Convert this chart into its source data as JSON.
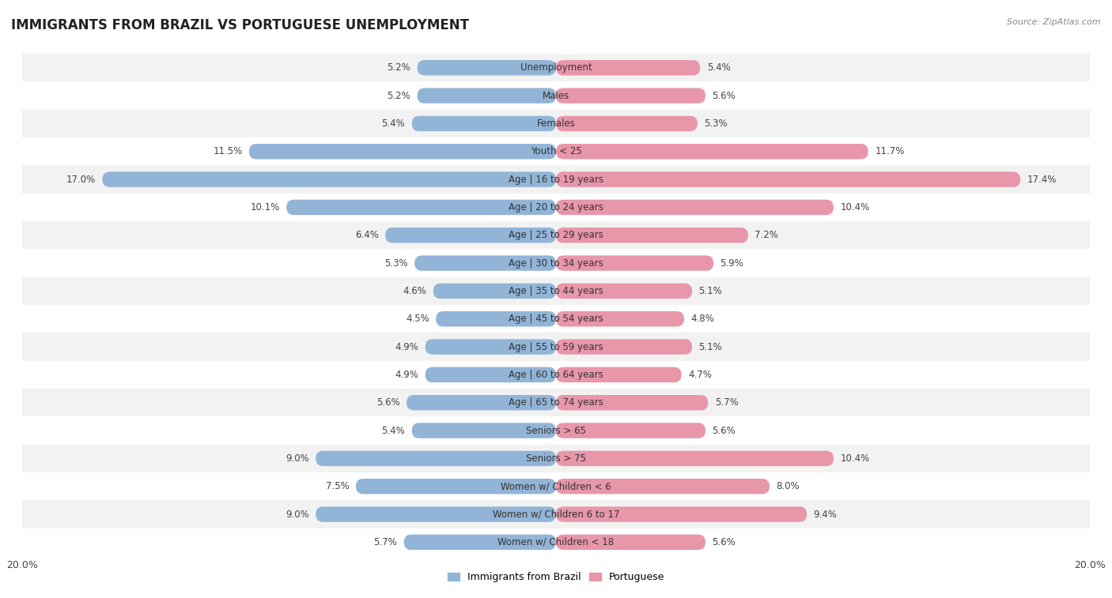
{
  "title": "IMMIGRANTS FROM BRAZIL VS PORTUGUESE UNEMPLOYMENT",
  "source": "Source: ZipAtlas.com",
  "categories": [
    "Unemployment",
    "Males",
    "Females",
    "Youth < 25",
    "Age | 16 to 19 years",
    "Age | 20 to 24 years",
    "Age | 25 to 29 years",
    "Age | 30 to 34 years",
    "Age | 35 to 44 years",
    "Age | 45 to 54 years",
    "Age | 55 to 59 years",
    "Age | 60 to 64 years",
    "Age | 65 to 74 years",
    "Seniors > 65",
    "Seniors > 75",
    "Women w/ Children < 6",
    "Women w/ Children 6 to 17",
    "Women w/ Children < 18"
  ],
  "brazil_values": [
    5.2,
    5.2,
    5.4,
    11.5,
    17.0,
    10.1,
    6.4,
    5.3,
    4.6,
    4.5,
    4.9,
    4.9,
    5.6,
    5.4,
    9.0,
    7.5,
    9.0,
    5.7
  ],
  "portuguese_values": [
    5.4,
    5.6,
    5.3,
    11.7,
    17.4,
    10.4,
    7.2,
    5.9,
    5.1,
    4.8,
    5.1,
    4.7,
    5.7,
    5.6,
    10.4,
    8.0,
    9.4,
    5.6
  ],
  "brazil_color": "#92b4d7",
  "portuguese_color": "#e896aa",
  "bar_height": 0.55,
  "xlim": 20,
  "bg_color": "#ffffff",
  "row_even_color": "#f2f2f2",
  "row_odd_color": "#ffffff",
  "label_fontsize": 8.5,
  "value_fontsize": 8.5,
  "title_fontsize": 12,
  "legend_brazil": "Immigrants from Brazil",
  "legend_portuguese": "Portuguese",
  "bottom_label": "20.0%"
}
